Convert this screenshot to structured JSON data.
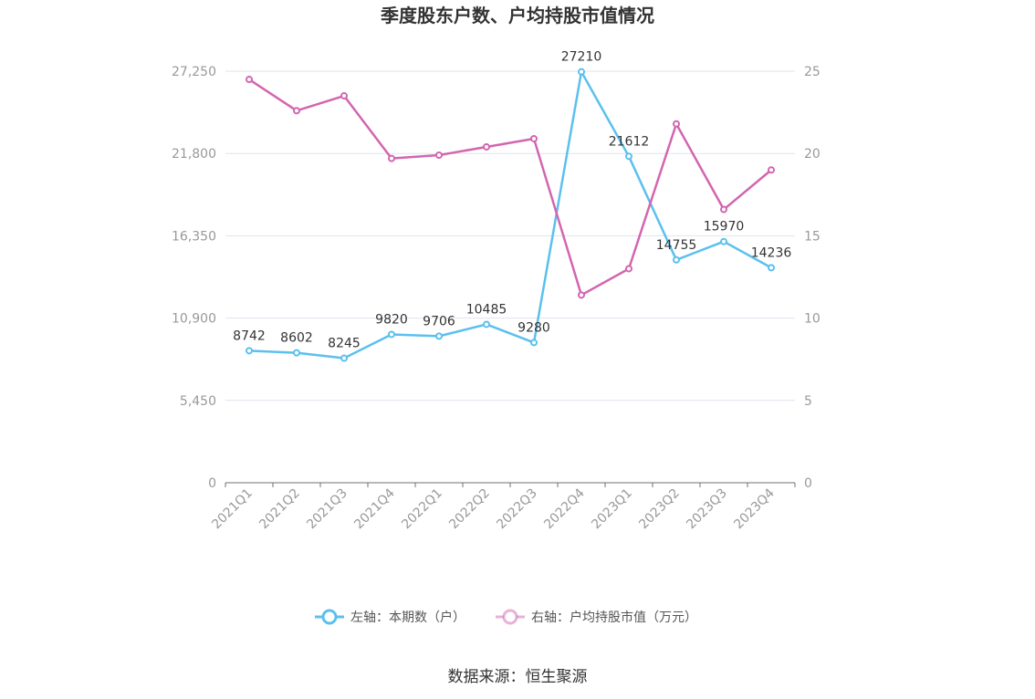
{
  "chart_data": {
    "type": "line",
    "title": "季度股东户数、户均持股市值情况",
    "categories": [
      "2021Q1",
      "2021Q2",
      "2021Q3",
      "2021Q4",
      "2022Q1",
      "2022Q2",
      "2022Q3",
      "2022Q4",
      "2023Q1",
      "2023Q2",
      "2023Q3",
      "2023Q4"
    ],
    "series": [
      {
        "name": "左轴：本期数（户）",
        "axis": "left",
        "color": "#5bc0ee",
        "values": [
          8742,
          8602,
          8245,
          9820,
          9706,
          10485,
          9280,
          27210,
          21612,
          14755,
          15970,
          14236
        ],
        "labels": [
          "8742",
          "8602",
          "8245",
          "9820",
          "9706",
          "10485",
          "9280",
          "27210",
          "21612",
          "14755",
          "15970",
          "14236"
        ]
      },
      {
        "name": "右轴：户均持股市值（万元）",
        "axis": "right",
        "color": "#d266b0",
        "values": [
          24.5,
          22.6,
          23.5,
          19.7,
          19.9,
          20.4,
          20.9,
          11.4,
          13.0,
          21.8,
          16.6,
          19.0
        ]
      }
    ],
    "y_left": {
      "range": [
        0,
        27250
      ],
      "ticks": [
        0,
        5450,
        10900,
        16350,
        21800,
        27250
      ],
      "tick_labels": [
        "0",
        "5,450",
        "10,900",
        "16,350",
        "21,800",
        "27,250"
      ]
    },
    "y_right": {
      "range": [
        0,
        25
      ],
      "ticks": [
        0,
        5,
        10,
        15,
        20,
        25
      ],
      "tick_labels": [
        "0",
        "5",
        "10",
        "15",
        "20",
        "25"
      ]
    },
    "grid": true,
    "legend_position": "bottom"
  },
  "source": "数据来源：恒生聚源"
}
